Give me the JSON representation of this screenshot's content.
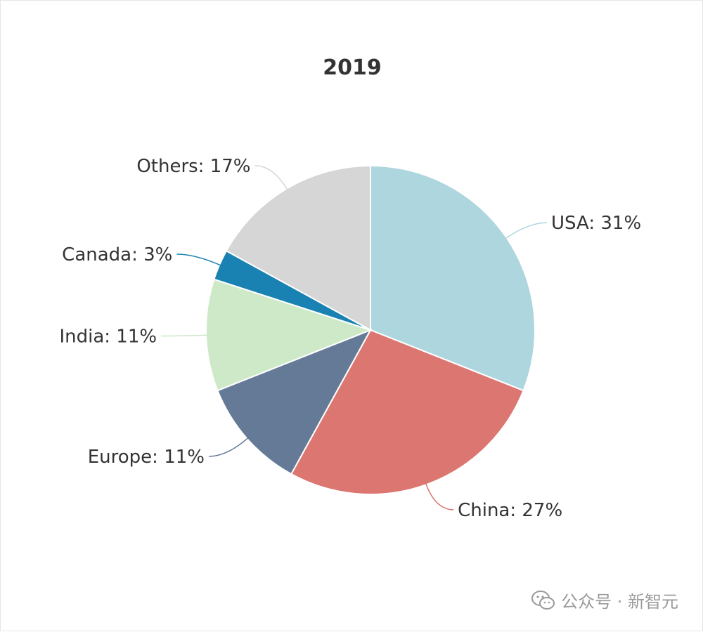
{
  "chart_data": {
    "type": "pie",
    "title": "2019",
    "categories": [
      "USA",
      "China",
      "Europe",
      "India",
      "Canada",
      "Others"
    ],
    "values": [
      31,
      27,
      11,
      11,
      3,
      17
    ],
    "labels": [
      "USA: 31%",
      "China: 27%",
      "Europe: 11%",
      "India: 11%",
      "Canada: 3%",
      "Others: 17%"
    ],
    "colors": [
      "#aed6de",
      "#dc7670",
      "#647a97",
      "#cde9c8",
      "#1a82b2",
      "#d6d6d6"
    ]
  },
  "watermark": {
    "text": "公众号 · 新智元",
    "icon": "wechat-icon"
  }
}
